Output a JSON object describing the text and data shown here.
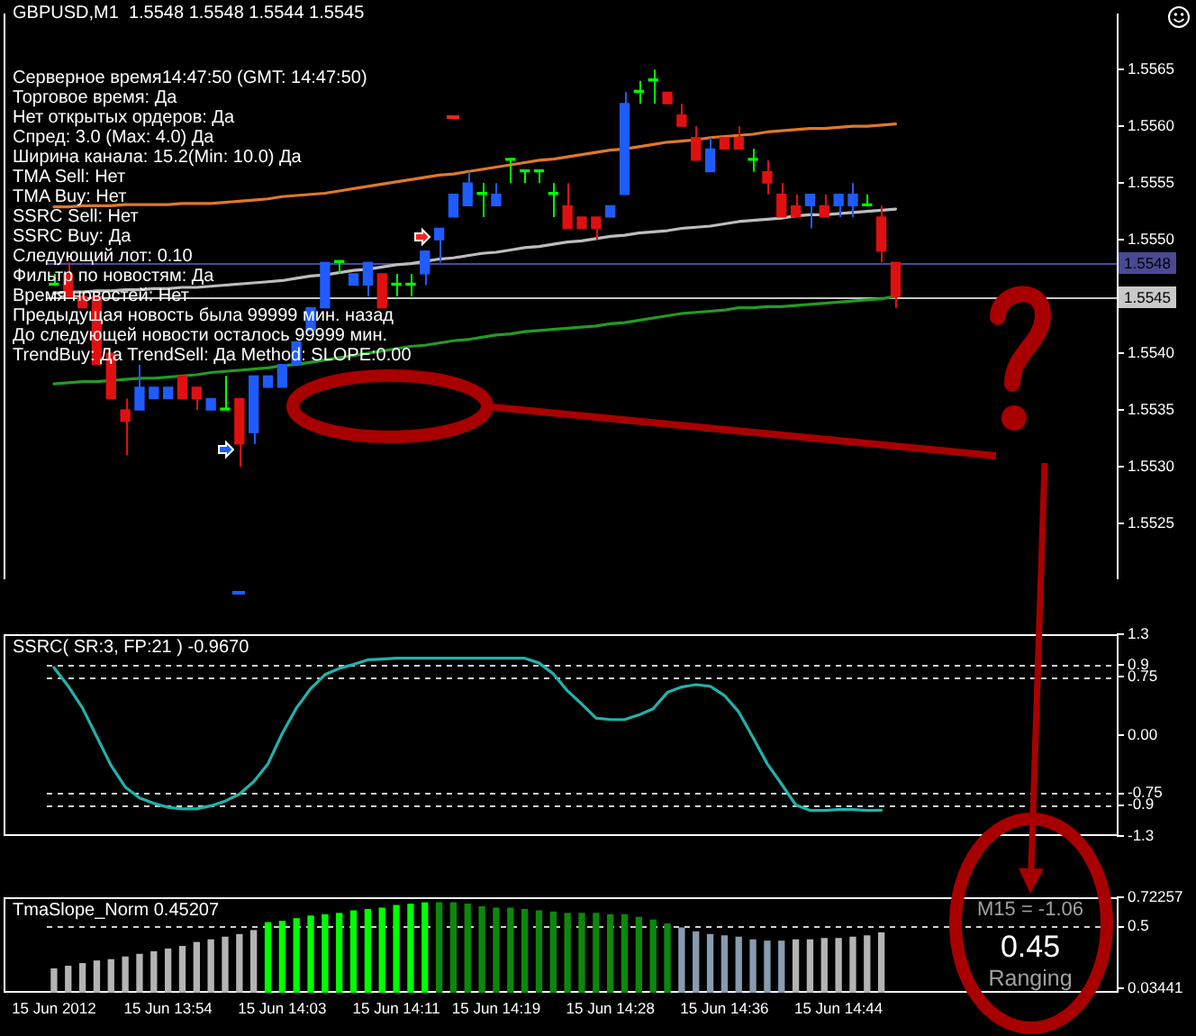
{
  "chart_data": [
    {
      "type": "candlestick",
      "title": "GBPUSD,M1  1.5548 1.5548 1.5544 1.5545",
      "annotations": [
        "Серверное время14:47:50 (GMT: 14:47:50)",
        "Торговое время: Да",
        "Нет открытых ордеров: Да",
        "Спред: 3.0 (Max: 4.0) Да",
        "Ширина канала: 15.2(Min: 10.0) Да",
        "TMA Sell: Нет",
        "TMA Buy: Нет",
        "SSRC Sell: Нет",
        "SSRC Buy: Да",
        "Следующий лот: 0.10",
        "Фильтр по новостям: Да",
        "Время новостей: Нет",
        "Предыдущая новость была 99999 мин. назад",
        "До следующей новости осталось 99999 мин.",
        "TrendBuy: Да TrendSell: Да Method: SLOPE:0.00"
      ],
      "categories": [
        null,
        null,
        null,
        null,
        null,
        null,
        null,
        null,
        null,
        null,
        null,
        null,
        null,
        null,
        null,
        null,
        null,
        null,
        null,
        null,
        null,
        null,
        null,
        null,
        null,
        null,
        null,
        null,
        null,
        null,
        null,
        null,
        null,
        null,
        null,
        null,
        null,
        null,
        null,
        null,
        null,
        null,
        null,
        null,
        null,
        null,
        null,
        null,
        null,
        null,
        null,
        null,
        null,
        null,
        null,
        null,
        null,
        null,
        null,
        null,
        null,
        null,
        null,
        null,
        null,
        null,
        null,
        null,
        null,
        null,
        null,
        null,
        null,
        null,
        null
      ],
      "ohlc": [
        [
          1.5546,
          1.5547,
          1.5546,
          1.5546
        ],
        [
          1.5547,
          1.5548,
          1.5545,
          1.5545
        ],
        [
          1.5545,
          1.5545,
          1.5544,
          1.5544
        ],
        [
          1.5545,
          1.5545,
          1.5539,
          1.5539
        ],
        [
          1.554,
          1.554,
          1.5536,
          1.5536
        ],
        [
          1.5535,
          1.5536,
          1.5531,
          1.5534
        ],
        [
          1.5535,
          1.5539,
          1.5535,
          1.5537
        ],
        [
          1.5536,
          1.5537,
          1.5536,
          1.5537
        ],
        [
          1.5536,
          1.5537,
          1.5536,
          1.5537
        ],
        [
          1.5538,
          1.5538,
          1.5536,
          1.5536
        ],
        [
          1.5537,
          1.5537,
          1.5535,
          1.5536
        ],
        [
          1.5535,
          1.5536,
          1.5535,
          1.5536
        ],
        [
          1.5535,
          1.5538,
          1.5535,
          1.5535
        ],
        [
          1.5536,
          1.5536,
          1.553,
          1.5532
        ],
        [
          1.5533,
          1.5538,
          1.5532,
          1.5538
        ],
        [
          1.5537,
          1.5538,
          1.5537,
          1.5538
        ],
        [
          1.5537,
          1.5539,
          1.5537,
          1.5539
        ],
        [
          1.5539,
          1.5541,
          1.5539,
          1.5541
        ],
        [
          1.5542,
          1.5544,
          1.5542,
          1.5544
        ],
        [
          1.5544,
          1.5548,
          1.5544,
          1.5548
        ],
        [
          1.5548,
          1.5548,
          1.5547,
          1.5548
        ],
        [
          1.5546,
          1.5547,
          1.5546,
          1.5547
        ],
        [
          1.5546,
          1.5548,
          1.5545,
          1.5548
        ],
        [
          1.5547,
          1.5547,
          1.5544,
          1.5544
        ],
        [
          1.5546,
          1.5547,
          1.5545,
          1.5546
        ],
        [
          1.5546,
          1.5547,
          1.5545,
          1.5546
        ],
        [
          1.5547,
          1.5549,
          1.5546,
          1.5549
        ],
        [
          1.555,
          1.5551,
          1.5548,
          1.5551
        ],
        [
          1.5552,
          1.5554,
          1.5552,
          1.5554
        ],
        [
          1.5553,
          1.5556,
          1.5553,
          1.5555
        ],
        [
          1.5554,
          1.5555,
          1.5552,
          1.5554
        ],
        [
          1.5553,
          1.5555,
          1.5553,
          1.5554
        ],
        [
          1.5557,
          1.5557,
          1.5555,
          1.5557
        ],
        [
          1.5556,
          1.5556,
          1.5555,
          1.5556
        ],
        [
          1.5556,
          1.5556,
          1.5555,
          1.5556
        ],
        [
          1.5554,
          1.5555,
          1.5552,
          1.5554
        ],
        [
          1.5553,
          1.5555,
          1.5551,
          1.5551
        ],
        [
          1.5552,
          1.5552,
          1.5551,
          1.5551
        ],
        [
          1.5552,
          1.5552,
          1.555,
          1.5551
        ],
        [
          1.5552,
          1.5553,
          1.5552,
          1.5553
        ],
        [
          1.5554,
          1.5563,
          1.5554,
          1.5562
        ],
        [
          1.5563,
          1.5564,
          1.5562,
          1.5563
        ],
        [
          1.5564,
          1.5565,
          1.5562,
          1.5564
        ],
        [
          1.5563,
          1.5563,
          1.5562,
          1.5562
        ],
        [
          1.5561,
          1.5562,
          1.556,
          1.556
        ],
        [
          1.5559,
          1.556,
          1.5557,
          1.5557
        ],
        [
          1.5556,
          1.5559,
          1.5556,
          1.5558
        ],
        [
          1.5559,
          1.5559,
          1.5558,
          1.5558
        ],
        [
          1.5559,
          1.556,
          1.5558,
          1.5558
        ],
        [
          1.5557,
          1.5558,
          1.5556,
          1.5557
        ],
        [
          1.5556,
          1.5557,
          1.5554,
          1.5555
        ],
        [
          1.5554,
          1.5555,
          1.5552,
          1.5552
        ],
        [
          1.5553,
          1.5554,
          1.5552,
          1.5552
        ],
        [
          1.5553,
          1.5554,
          1.5551,
          1.5554
        ],
        [
          1.5553,
          1.5554,
          1.5552,
          1.5552
        ],
        [
          1.5553,
          1.5554,
          1.5552,
          1.5554
        ],
        [
          1.5553,
          1.5555,
          1.5552,
          1.5554
        ],
        [
          1.5553,
          1.5554,
          1.5553,
          1.5553
        ],
        [
          1.5552,
          1.5553,
          1.5548,
          1.5549
        ],
        [
          1.5548,
          1.5548,
          1.5544,
          1.5545
        ],
        null,
        null,
        null,
        null,
        null,
        null,
        null,
        null,
        null,
        null,
        null,
        null,
        null,
        null,
        null
      ],
      "colors": [
        "#00ff00",
        "#e01010",
        "#e01010",
        "#e01010",
        "#e01010",
        "#e01010",
        "#1e5cff",
        "#1e5cff",
        "#1e5cff",
        "#e01010",
        "#e01010",
        "#1e5cff",
        "#00ff00",
        "#e01010",
        "#1e5cff",
        "#1e5cff",
        "#1e5cff",
        "#1e5cff",
        "#1e5cff",
        "#1e5cff",
        "#00ff00",
        "#1e5cff",
        "#1e5cff",
        "#e01010",
        "#00ff00",
        "#00ff00",
        "#1e5cff",
        "#1e5cff",
        "#1e5cff",
        "#1e5cff",
        "#00ff00",
        "#1e5cff",
        "#00ff00",
        "#00ff00",
        "#00ff00",
        "#00ff00",
        "#e01010",
        "#e01010",
        "#e01010",
        "#1e5cff",
        "#1e5cff",
        "#00ff00",
        "#00ff00",
        "#e01010",
        "#e01010",
        "#e01010",
        "#1e5cff",
        "#e01010",
        "#e01010",
        "#00ff00",
        "#e01010",
        "#e01010",
        "#e01010",
        "#1e5cff",
        "#e01010",
        "#1e5cff",
        "#1e5cff",
        "#00ff00",
        "#e01010",
        "#e01010",
        null,
        null,
        null,
        null,
        null,
        null,
        null,
        null,
        null,
        null,
        null,
        null,
        null,
        null,
        null
      ],
      "series": [
        {
          "type": "line",
          "color": "#e0782a",
          "values": [
            1.55529,
            1.55529,
            1.5553,
            1.5553,
            1.5553,
            1.55531,
            1.55531,
            1.55531,
            1.55531,
            1.55532,
            1.55532,
            1.55532,
            1.55533,
            1.55534,
            1.55535,
            1.55536,
            1.55538,
            1.55539,
            1.5554,
            1.55541,
            1.55543,
            1.55545,
            1.55547,
            1.55549,
            1.55551,
            1.55553,
            1.55555,
            1.55557,
            1.55558,
            1.5556,
            1.55562,
            1.55564,
            1.55566,
            1.55568,
            1.5557,
            1.55571,
            1.55573,
            1.55575,
            1.55577,
            1.55579,
            1.5558,
            1.55582,
            1.55584,
            1.55586,
            1.55587,
            1.55588,
            1.5559,
            1.55591,
            1.55592,
            1.55593,
            1.55595,
            1.55596,
            1.55597,
            1.55598,
            1.55598,
            1.55599,
            1.556,
            1.556,
            1.55601,
            1.55602,
            null,
            null,
            null,
            null,
            null,
            null,
            null,
            null,
            null,
            null,
            null,
            null,
            null,
            null,
            null
          ]
        },
        {
          "type": "line",
          "color": "#bdbdbd",
          "values": [
            1.55453,
            1.55454,
            1.55454,
            1.55455,
            1.55455,
            1.55456,
            1.55456,
            1.55457,
            1.55457,
            1.55458,
            1.55458,
            1.55459,
            1.5546,
            1.55461,
            1.55462,
            1.55463,
            1.55464,
            1.55466,
            1.55468,
            1.55469,
            1.55471,
            1.55473,
            1.55474,
            1.55476,
            1.55478,
            1.55479,
            1.55481,
            1.55483,
            1.55484,
            1.55486,
            1.55488,
            1.55489,
            1.55491,
            1.55493,
            1.55494,
            1.55496,
            1.55498,
            1.55499,
            1.55501,
            1.55503,
            1.55504,
            1.55506,
            1.55507,
            1.55508,
            1.5551,
            1.55511,
            1.55512,
            1.55514,
            1.55516,
            1.55517,
            1.55518,
            1.55519,
            1.55521,
            1.55522,
            1.55522,
            1.55523,
            1.55524,
            1.55525,
            1.55526,
            1.55527,
            null,
            null,
            null,
            null,
            null,
            null,
            null,
            null,
            null,
            null,
            null,
            null,
            null,
            null,
            null
          ]
        },
        {
          "type": "line",
          "color": "#239b23",
          "values": [
            1.55373,
            1.55374,
            1.55375,
            1.55375,
            1.55376,
            1.55377,
            1.55378,
            1.55378,
            1.55379,
            1.5538,
            1.55381,
            1.55383,
            1.55384,
            1.55385,
            1.55386,
            1.55387,
            1.55389,
            1.5539,
            1.55392,
            1.55394,
            1.55396,
            1.55398,
            1.554,
            1.55402,
            1.55404,
            1.55406,
            1.55407,
            1.55409,
            1.55411,
            1.55412,
            1.55414,
            1.55416,
            1.55417,
            1.55419,
            1.5542,
            1.55421,
            1.55422,
            1.55423,
            1.55424,
            1.55426,
            1.55427,
            1.55429,
            1.55431,
            1.55433,
            1.55435,
            1.55436,
            1.55437,
            1.55438,
            1.5544,
            1.5544,
            1.55441,
            1.55441,
            1.55442,
            1.55443,
            1.55444,
            1.55445,
            1.55446,
            1.55447,
            1.55448,
            1.5545,
            null,
            null,
            null,
            null,
            null,
            null,
            null,
            null,
            null,
            null,
            null,
            null,
            null,
            null,
            null
          ]
        }
      ],
      "ylim": [
        1.552,
        1.557
      ],
      "yticks": [
        1.5525,
        {
          "value": 1.553,
          "label": "1.5530"
        },
        1.5535,
        {
          "value": 1.554,
          "label": "1.5540"
        },
        {
          "value": 1.555,
          "label": "1.5550"
        },
        1.5555,
        {
          "value": 1.556,
          "label": "1.5560"
        },
        1.5565
      ],
      "ref_lines": [
        {
          "axis": "y",
          "value": 1.5548,
          "label": "1.5548",
          "color": "#4a4a92"
        },
        {
          "axis": "y",
          "value": 1.5545,
          "label": "1.5545",
          "color": "#c8c8c8"
        }
      ],
      "tick_labels": "y"
    },
    {
      "type": "line",
      "title": "SSRC( SR:3, FP:21 ) -0.9670",
      "categories": [
        null,
        null,
        null,
        null,
        null,
        null,
        null,
        null,
        null,
        null,
        null,
        null,
        null,
        null,
        null,
        null,
        null,
        null,
        null,
        null,
        null,
        null,
        null,
        null,
        null,
        null,
        null,
        null,
        null,
        null,
        null,
        null,
        null,
        null,
        null,
        null,
        null,
        null,
        null,
        null,
        null,
        null,
        null,
        null,
        null,
        null,
        null,
        null,
        null,
        null,
        null,
        null,
        null,
        null,
        null,
        null,
        null,
        null,
        null,
        null,
        null,
        null,
        null,
        null,
        null,
        null,
        null,
        null,
        null,
        null,
        null,
        null,
        null,
        null,
        null
      ],
      "color": "#20b2aa",
      "values": [
        0.87,
        0.63,
        0.35,
        -0.02,
        -0.39,
        -0.67,
        -0.81,
        -0.88,
        -0.93,
        -0.95,
        -0.95,
        -0.91,
        -0.85,
        -0.76,
        -0.6,
        -0.37,
        0.02,
        0.35,
        0.6,
        0.78,
        0.86,
        0.91,
        0.97,
        0.98,
        0.99,
        0.99,
        0.99,
        0.99,
        0.99,
        0.99,
        0.99,
        0.99,
        0.99,
        0.99,
        0.93,
        0.79,
        0.57,
        0.4,
        0.22,
        0.2,
        0.2,
        0.26,
        0.34,
        0.55,
        0.62,
        0.65,
        0.63,
        0.51,
        0.3,
        -0.03,
        -0.37,
        -0.63,
        -0.9,
        -0.97,
        -0.97,
        -0.96,
        -0.96,
        -0.97,
        -0.967,
        null,
        null,
        null,
        null,
        null,
        null,
        null,
        null,
        null,
        null,
        null,
        null,
        null,
        null,
        null,
        null
      ],
      "ylim": [
        -1.3,
        1.3
      ],
      "yticks": [
        -1.3,
        -0.9,
        -0.75,
        {
          "value": 0,
          "label": "0.00"
        },
        0.75,
        0.9,
        1.3
      ],
      "ref_lines": [
        {
          "axis": "y",
          "value": 0.9,
          "color": "#d0d0d0",
          "line_style": "dashed"
        },
        {
          "axis": "y",
          "value": 0.75,
          "color": "#d0d0d0",
          "line_style": "dashed"
        },
        {
          "axis": "y",
          "value": -0.75,
          "color": "#d0d0d0",
          "line_style": "dashed"
        },
        {
          "axis": "y",
          "value": -0.9,
          "color": "#d0d0d0",
          "line_style": "dashed"
        }
      ],
      "tick_labels": "y"
    },
    {
      "type": "bar",
      "title": "TmaSlope_Norm 0.45207",
      "annotations": [
        "M15 = -1.06",
        "0.45",
        "Ranging"
      ],
      "categories": [
        "15 Jun 2012",
        null,
        null,
        null,
        null,
        null,
        null,
        null,
        "15 Jun 13:54",
        null,
        null,
        null,
        null,
        null,
        null,
        null,
        "15 Jun 14:03",
        null,
        null,
        null,
        null,
        null,
        null,
        null,
        "15 Jun 14:11",
        null,
        null,
        null,
        null,
        null,
        null,
        "15 Jun 14:19",
        null,
        null,
        null,
        null,
        null,
        null,
        null,
        "15 Jun 14:28",
        null,
        null,
        null,
        null,
        null,
        null,
        null,
        "15 Jun 14:36",
        null,
        null,
        null,
        null,
        null,
        null,
        null,
        "15 Jun 14:44",
        null,
        null,
        null,
        null,
        null,
        null,
        null,
        null,
        null,
        null,
        null,
        null,
        null,
        null,
        null,
        null,
        null,
        null,
        null
      ],
      "values": [
        0.18,
        0.2,
        0.22,
        0.24,
        0.25,
        0.27,
        0.29,
        0.31,
        0.33,
        0.35,
        0.38,
        0.4,
        0.42,
        0.44,
        0.47,
        0.53,
        0.54,
        0.56,
        0.58,
        0.59,
        0.6,
        0.62,
        0.63,
        0.64,
        0.66,
        0.67,
        0.68,
        0.68,
        0.68,
        0.67,
        0.65,
        0.64,
        0.64,
        0.63,
        0.62,
        0.61,
        0.6,
        0.6,
        0.6,
        0.59,
        0.59,
        0.57,
        0.55,
        0.52,
        0.49,
        0.46,
        0.44,
        0.43,
        0.42,
        0.4,
        0.39,
        0.39,
        0.4,
        0.4,
        0.41,
        0.41,
        0.42,
        0.43,
        0.45207,
        null,
        null,
        null,
        null,
        null,
        null,
        null,
        null,
        null,
        null,
        null,
        null,
        null,
        null,
        null,
        null
      ],
      "colors": [
        "#b4b4b4",
        "#b4b4b4",
        "#b4b4b4",
        "#b4b4b4",
        "#b4b4b4",
        "#b4b4b4",
        "#b4b4b4",
        "#b4b4b4",
        "#b4b4b4",
        "#b4b4b4",
        "#b4b4b4",
        "#b4b4b4",
        "#b4b4b4",
        "#b4b4b4",
        "#b4b4b4",
        "#00ff00",
        "#00ff00",
        "#00ff00",
        "#00ff00",
        "#00ff00",
        "#00ff00",
        "#00ff00",
        "#00ff00",
        "#00ff00",
        "#00ff00",
        "#00ff00",
        "#00ff00",
        "#0c880c",
        "#0c880c",
        "#0c880c",
        "#0c880c",
        "#0c880c",
        "#0c880c",
        "#0c880c",
        "#0c880c",
        "#0c880c",
        "#0c880c",
        "#0c880c",
        "#0c880c",
        "#0c880c",
        "#0c880c",
        "#0c880c",
        "#0c880c",
        "#0c880c",
        "#8a9bb0",
        "#8a9bb0",
        "#8a9bb0",
        "#8a9bb0",
        "#8a9bb0",
        "#8a9bb0",
        "#8a9bb0",
        "#8a9bb0",
        "#b4b4b4",
        "#b4b4b4",
        "#b4b4b4",
        "#b4b4b4",
        "#b4b4b4",
        "#b4b4b4",
        "#b4b4b4",
        null,
        null,
        null,
        null,
        null,
        null,
        null,
        null,
        null,
        null,
        null,
        null,
        null,
        null,
        null,
        null
      ],
      "ylim": [
        0,
        0.72257
      ],
      "yticks": [
        0.03441,
        0.5,
        0.72257
      ],
      "ref_lines": [
        {
          "axis": "y",
          "value": 0.5,
          "color": "#d0d0d0",
          "line_style": "dashed"
        }
      ]
    }
  ]
}
